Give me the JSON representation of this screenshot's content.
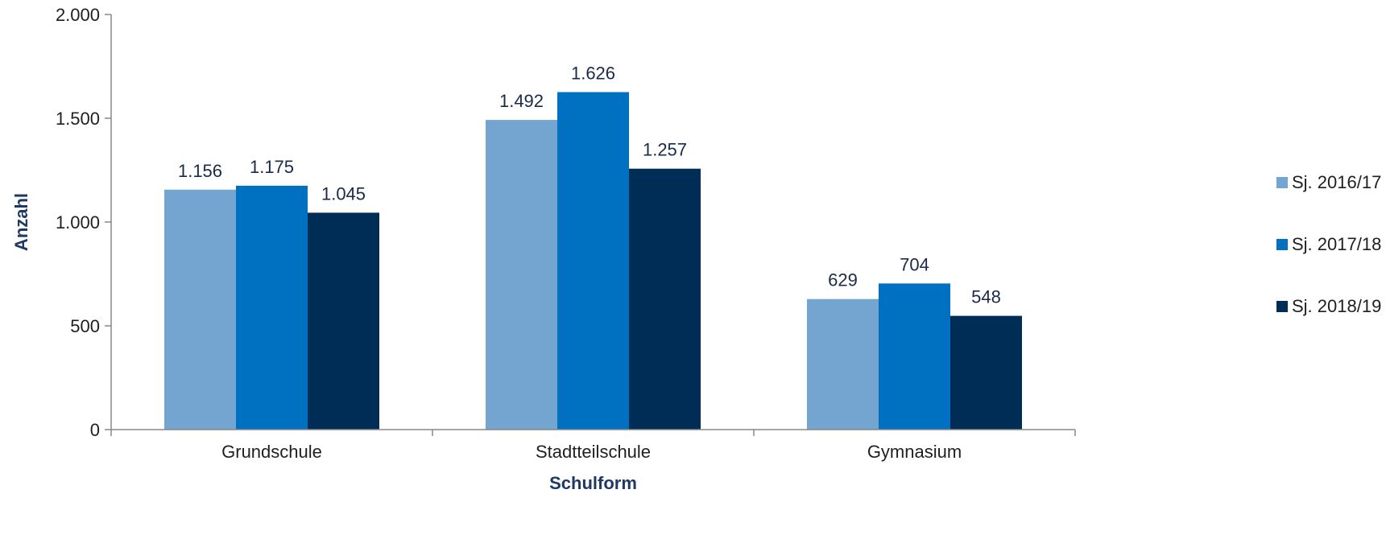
{
  "chart_data": {
    "type": "bar",
    "categories": [
      "Grundschule",
      "Stadtteilschule",
      "Gymnasium"
    ],
    "series": [
      {
        "name": "Sj. 2016/17",
        "values": [
          1156,
          1492,
          629
        ],
        "color": "#73a5d0"
      },
      {
        "name": "Sj. 2017/18",
        "values": [
          1175,
          1626,
          704
        ],
        "color": "#0070c0"
      },
      {
        "name": "Sj. 2018/19",
        "values": [
          1045,
          1257,
          548
        ],
        "color": "#002d55"
      }
    ],
    "value_labels": [
      [
        "1.156",
        "1.492",
        "629"
      ],
      [
        "1.175",
        "1.626",
        "704"
      ],
      [
        "1.045",
        "1.257",
        "548"
      ]
    ],
    "title": "",
    "xlabel": "Schulform",
    "ylabel": "Anzahl",
    "ylim": [
      0,
      2000
    ],
    "yticks": [
      0,
      500,
      1000,
      1500,
      2000
    ],
    "ytick_labels": [
      "0",
      "500",
      "1.000",
      "1.500",
      "2.000"
    ],
    "grid": false,
    "legend_position": "right"
  }
}
